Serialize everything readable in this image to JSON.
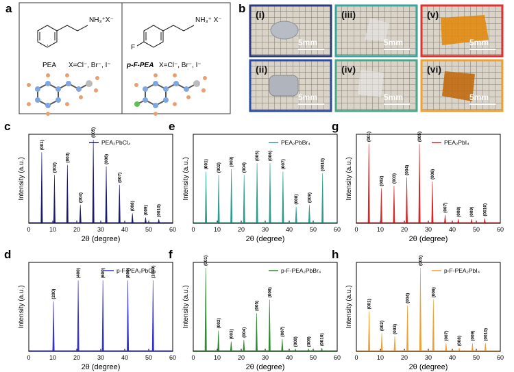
{
  "panel_a": {
    "label": "a",
    "left": {
      "formula": "NH₃⁺X⁻",
      "name": "PEA",
      "halides": "X=Cl⁻, Br⁻, I⁻"
    },
    "right": {
      "substituent": "F",
      "formula": "NH₃⁺ X⁻",
      "name": "p-F-PEA",
      "halides": "X=Cl⁻, Br⁻, I⁻"
    }
  },
  "panel_b": {
    "label": "b",
    "tiles": [
      {
        "label": "(i)",
        "scale": "5mm",
        "border": "#2b3a7a"
      },
      {
        "label": "(iii)",
        "scale": "5mm",
        "border": "#3aa59a"
      },
      {
        "label": "(v)",
        "scale": "5mm",
        "border": "#e03030"
      },
      {
        "label": "(ii)",
        "scale": "5mm",
        "border": "#2a4aa8"
      },
      {
        "label": "(iv)",
        "scale": "5mm",
        "border": "#4aa88a"
      },
      {
        "label": "(vi)",
        "scale": "5mm",
        "border": "#f0a030"
      }
    ]
  },
  "chart_data": [
    {
      "type": "xrd",
      "panel": "c",
      "xlabel": "2θ (degree)",
      "ylabel": "Intensity (a.u.)",
      "xlim": [
        0,
        60
      ],
      "xticks": [
        0,
        10,
        20,
        30,
        40,
        50,
        60
      ],
      "ylim": [
        0,
        100
      ],
      "legend": "upper center",
      "series": [
        {
          "name": "PEA₂PbCl₄",
          "color": "#1c1c6e",
          "x": [
            5.4,
            10.7,
            16.1,
            21.5,
            26.9,
            32.3,
            37.8,
            43.2,
            48.7,
            54.2
          ],
          "values": [
            85,
            58,
            70,
            22,
            100,
            68,
            46,
            12,
            7,
            5
          ],
          "peak_labels": [
            "(001)",
            "(002)",
            "(003)",
            "(004)",
            "(005)",
            "(006)",
            "(007)",
            "(008)",
            "(009)",
            "(0010)"
          ]
        }
      ]
    },
    {
      "type": "xrd",
      "panel": "e",
      "xlabel": "2θ (degree)",
      "ylabel": "Intensity (a.u.)",
      "xlim": [
        0,
        60
      ],
      "xticks": [
        0,
        10,
        20,
        30,
        40,
        50,
        60
      ],
      "ylim": [
        0,
        100
      ],
      "legend": "upper right",
      "series": [
        {
          "name": "PEA₂PbBr₄",
          "color": "#2a9d8f",
          "x": [
            5.3,
            10.6,
            15.9,
            21.2,
            26.6,
            32.0,
            37.4,
            42.9,
            48.4,
            53.9
          ],
          "values": [
            62,
            58,
            65,
            58,
            72,
            72,
            62,
            20,
            22,
            60
          ],
          "peak_labels": [
            "(001)",
            "(002)",
            "(003)",
            "(004)",
            "(005)",
            "(006)",
            "(007)",
            "(008)",
            "(009)",
            "(0010)"
          ]
        }
      ]
    },
    {
      "type": "xrd",
      "panel": "g",
      "xlabel": "2θ (degree)",
      "ylabel": "Intensity (a.u.)",
      "xlim": [
        0,
        60
      ],
      "xticks": [
        0,
        10,
        20,
        30,
        40,
        50,
        60
      ],
      "ylim": [
        0,
        100
      ],
      "legend": "upper right",
      "series": [
        {
          "name": "PEA₂PbI₄",
          "color": "#d62728",
          "x": [
            5.2,
            10.4,
            15.7,
            21.0,
            26.3,
            31.7,
            37.0,
            42.5,
            48.0,
            53.5
          ],
          "values": [
            95,
            42,
            45,
            55,
            95,
            50,
            10,
            5,
            5,
            6
          ],
          "peak_labels": [
            "(001)",
            "(002)",
            "(003)",
            "(004)",
            "(005)",
            "(006)",
            "(007)",
            "(008)",
            "(009)",
            "(0010)"
          ]
        }
      ]
    },
    {
      "type": "xrd",
      "panel": "d",
      "xlabel": "2θ (degree)",
      "ylabel": "Intensity (a.u.)",
      "xlim": [
        0,
        60
      ],
      "xticks": [
        0,
        10,
        20,
        30,
        40,
        50,
        60
      ],
      "ylim": [
        0,
        100
      ],
      "legend": "upper right",
      "series": [
        {
          "name": "p-F-PEA₂PbCl₄",
          "color": "#3333cc",
          "x": [
            10.3,
            20.6,
            30.9,
            41.3,
            51.8
          ],
          "values": [
            60,
            85,
            85,
            85,
            85
          ],
          "peak_labels": [
            "(200)",
            "(400)",
            "(600)",
            "(800)",
            "(1000)"
          ]
        }
      ]
    },
    {
      "type": "xrd",
      "panel": "f",
      "xlabel": "2θ (degree)",
      "ylabel": "Intensity (a.u.)",
      "xlim": [
        0,
        60
      ],
      "xticks": [
        0,
        10,
        20,
        30,
        40,
        50,
        60
      ],
      "ylim": [
        0,
        100
      ],
      "legend": "upper right",
      "series": [
        {
          "name": "p-F-PEA₂PbBr₄",
          "color": "#2e8b2e",
          "x": [
            5.2,
            10.5,
            15.8,
            21.1,
            26.4,
            31.8,
            37.1,
            42.6,
            48.1,
            53.6
          ],
          "values": [
            100,
            25,
            12,
            14,
            46,
            62,
            15,
            3,
            3,
            4
          ],
          "peak_labels": [
            "(001)",
            "(002)",
            "(003)",
            "(004)",
            "(005)",
            "(006)",
            "(007)",
            "(008)",
            "(009)",
            "(0010)"
          ]
        }
      ]
    },
    {
      "type": "xrd",
      "panel": "h",
      "xlabel": "2θ (degree)",
      "ylabel": "Intensity (a.u.)",
      "xlim": [
        0,
        60
      ],
      "xticks": [
        0,
        10,
        20,
        30,
        40,
        50,
        60
      ],
      "ylim": [
        0,
        100
      ],
      "legend": "upper right",
      "series": [
        {
          "name": "p-F-PEA₂PbI₄",
          "color": "#f0a030",
          "x": [
            5.3,
            10.6,
            16.0,
            21.3,
            26.7,
            32.1,
            37.4,
            42.9,
            48.4,
            53.8
          ],
          "values": [
            48,
            22,
            18,
            55,
            100,
            62,
            10,
            4,
            10,
            10
          ],
          "peak_labels": [
            "(001)",
            "(002)",
            "(003)",
            "(004)",
            "(005)",
            "(006)",
            "(007)",
            "(008)",
            "(009)",
            "(0010)"
          ]
        }
      ]
    }
  ]
}
